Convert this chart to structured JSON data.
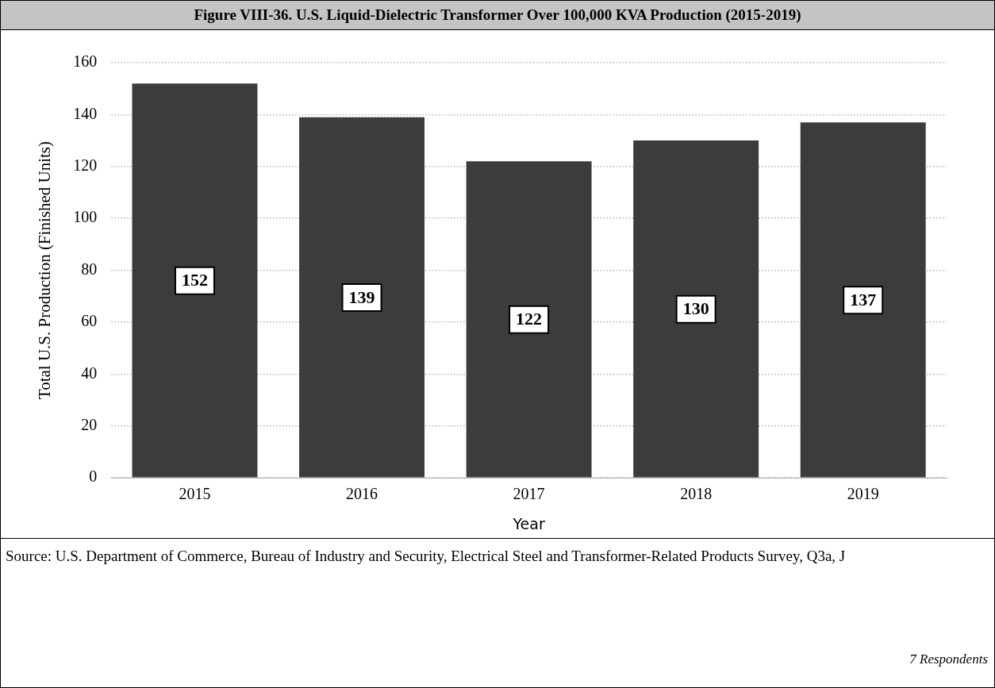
{
  "chart_data": {
    "type": "bar",
    "title": "Figure VIII-36.  U.S. Liquid-Dielectric Transformer Over 100,000 KVA Production (2015-2019)",
    "xlabel": "Year",
    "ylabel": "Total U.S. Production (Finished Units)",
    "categories": [
      "2015",
      "2016",
      "2017",
      "2018",
      "2019"
    ],
    "values": [
      152,
      139,
      122,
      130,
      137
    ],
    "color": "#3c3c3c",
    "ylim": [
      0,
      160
    ],
    "yticks": [
      0,
      20,
      40,
      60,
      80,
      100,
      120,
      140,
      160
    ],
    "grid": "y",
    "data_labels": true,
    "annotations": [
      "Source: U.S. Department of Commerce, Bureau of Industry and Security, Electrical Steel and Transformer-Related Products Survey, Q3a, J",
      "7 Respondents"
    ]
  }
}
